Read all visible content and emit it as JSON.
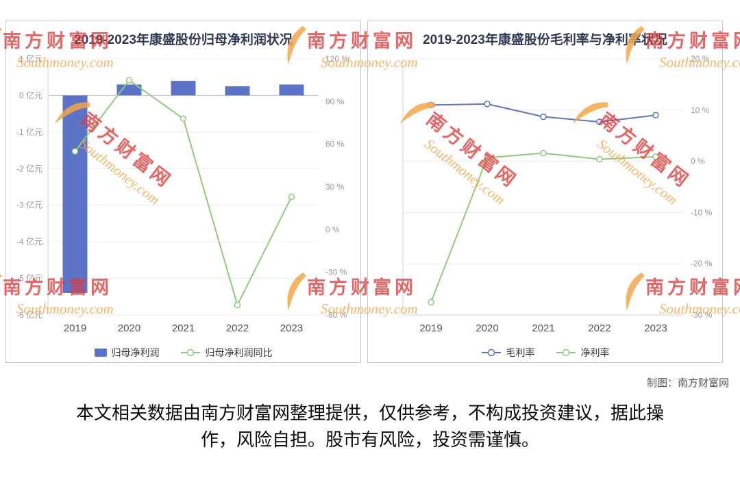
{
  "page": {
    "credit": "制图：南方财富网",
    "disclaimer": "本文相关数据由南方财富网整理提供，仅供参考，不构成投资建议，据此操作，风险自担。股市有风险，投资需谨慎。"
  },
  "watermark": {
    "cn": "南方财富网",
    "en": "Southmoney.com"
  },
  "colors": {
    "bar_blue": "#5b74c7",
    "line_green": "#8fcb7d",
    "line_blue": "#5b74c7",
    "watermark_red": "#e03a3a",
    "watermark_orange": "#f4a64a",
    "title_color": "#2f3a52",
    "axis_label_gray": "#999999",
    "grid_gray": "#ececec"
  },
  "chart_data": [
    {
      "type": "bar",
      "title": "2019-2023年康盛股份归母净利润状况",
      "categories": [
        "2019",
        "2020",
        "2021",
        "2022",
        "2023"
      ],
      "bar_series": {
        "name": "归母净利润",
        "unit": "亿元",
        "values": [
          -5.4,
          0.3,
          0.4,
          0.25,
          0.3
        ],
        "color": "#5b74c7"
      },
      "line_series": {
        "name": "归母净利润同比",
        "unit": "%",
        "values": [
          55,
          105,
          78,
          -53,
          23
        ],
        "color": "#8fcb7d"
      },
      "left_axis": {
        "ticks": [
          1,
          0,
          -1,
          -2,
          -3,
          -4,
          -5,
          -6
        ],
        "suffix": "亿元",
        "min": -6,
        "max": 1
      },
      "right_axis": {
        "ticks": [
          120,
          90,
          60,
          30,
          0,
          -30,
          -60
        ],
        "suffix": "%",
        "min": -60,
        "max": 120
      },
      "legend": [
        "归母净利润",
        "归母净利润同比"
      ],
      "grid": true,
      "legend_position": "bottom"
    },
    {
      "type": "line",
      "title": "2019-2023年康盛股份毛利率与净利率状况",
      "categories": [
        "2019",
        "2020",
        "2021",
        "2022",
        "2023"
      ],
      "series": [
        {
          "name": "毛利率",
          "values": [
            11,
            11.2,
            8.7,
            7.7,
            9
          ],
          "color": "#5b74c7"
        },
        {
          "name": "净利率",
          "values": [
            -27.5,
            0.7,
            1.6,
            0.4,
            0.9
          ],
          "color": "#8fcb7d"
        }
      ],
      "right_axis": {
        "ticks": [
          20,
          10,
          0,
          -10,
          -20,
          -30
        ],
        "suffix": "%",
        "min": -30,
        "max": 20
      },
      "legend": [
        "毛利率",
        "净利率"
      ],
      "grid": true,
      "legend_position": "bottom"
    }
  ]
}
